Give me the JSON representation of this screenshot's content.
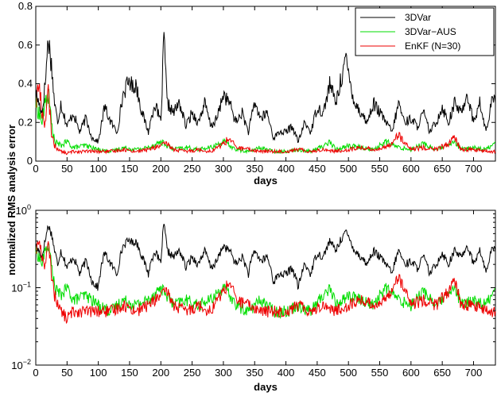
{
  "figure": {
    "ylabel": "normalized RMS analysis error"
  },
  "chart_data": [
    {
      "type": "line",
      "scale": "linear",
      "xlabel": "days",
      "ylabel": "normalized RMS analysis error",
      "xlim": [
        0,
        735
      ],
      "ylim": [
        0,
        0.8
      ],
      "xticks": [
        0,
        50,
        100,
        150,
        200,
        250,
        300,
        350,
        400,
        450,
        500,
        550,
        600,
        650,
        700
      ],
      "yticks": [
        0,
        0.2,
        0.4,
        0.6,
        0.8
      ],
      "xtick_labels": [
        "0",
        "50",
        "100",
        "150",
        "200",
        "250",
        "300",
        "350",
        "400",
        "450",
        "500",
        "550",
        "600",
        "650",
        "700"
      ],
      "ytick_labels": [
        "0",
        "0.2",
        "0.4",
        "0.6",
        "0.8"
      ],
      "legend": {
        "position": "top-right"
      },
      "series": [
        {
          "name": "3DVar",
          "color": "#000000",
          "x": [
            0,
            5,
            10,
            15,
            20,
            25,
            30,
            35,
            40,
            50,
            60,
            70,
            80,
            90,
            100,
            110,
            120,
            130,
            140,
            150,
            155,
            160,
            170,
            180,
            190,
            200,
            205,
            210,
            220,
            230,
            240,
            250,
            260,
            270,
            280,
            290,
            300,
            305,
            310,
            320,
            330,
            340,
            350,
            360,
            370,
            380,
            390,
            400,
            410,
            420,
            430,
            440,
            450,
            460,
            470,
            480,
            490,
            495,
            500,
            510,
            520,
            530,
            540,
            550,
            560,
            570,
            580,
            590,
            600,
            610,
            620,
            630,
            640,
            650,
            660,
            670,
            680,
            690,
            700,
            710,
            720,
            730,
            735
          ],
          "y": [
            0.35,
            0.3,
            0.25,
            0.4,
            0.64,
            0.5,
            0.3,
            0.2,
            0.3,
            0.18,
            0.25,
            0.15,
            0.22,
            0.12,
            0.1,
            0.28,
            0.2,
            0.15,
            0.35,
            0.42,
            0.38,
            0.4,
            0.25,
            0.15,
            0.3,
            0.2,
            0.64,
            0.3,
            0.25,
            0.3,
            0.18,
            0.25,
            0.2,
            0.3,
            0.18,
            0.22,
            0.35,
            0.32,
            0.3,
            0.2,
            0.25,
            0.15,
            0.3,
            0.22,
            0.25,
            0.12,
            0.15,
            0.15,
            0.18,
            0.1,
            0.2,
            0.15,
            0.28,
            0.25,
            0.4,
            0.3,
            0.45,
            0.53,
            0.45,
            0.3,
            0.25,
            0.2,
            0.3,
            0.25,
            0.2,
            0.15,
            0.3,
            0.2,
            0.22,
            0.18,
            0.25,
            0.15,
            0.2,
            0.28,
            0.2,
            0.3,
            0.25,
            0.35,
            0.2,
            0.3,
            0.15,
            0.32,
            0.3
          ]
        },
        {
          "name": "3DVar−AUS",
          "color": "#00dd00",
          "x": [
            0,
            5,
            10,
            15,
            20,
            25,
            30,
            40,
            50,
            60,
            80,
            100,
            120,
            140,
            160,
            180,
            200,
            210,
            220,
            240,
            260,
            280,
            300,
            310,
            320,
            340,
            360,
            380,
            400,
            420,
            440,
            460,
            470,
            480,
            500,
            520,
            540,
            560,
            580,
            600,
            620,
            640,
            660,
            670,
            680,
            700,
            720,
            735
          ],
          "y": [
            0.3,
            0.25,
            0.2,
            0.3,
            0.35,
            0.2,
            0.1,
            0.08,
            0.1,
            0.07,
            0.08,
            0.06,
            0.05,
            0.07,
            0.06,
            0.07,
            0.1,
            0.08,
            0.06,
            0.07,
            0.06,
            0.07,
            0.1,
            0.08,
            0.06,
            0.05,
            0.07,
            0.05,
            0.05,
            0.06,
            0.05,
            0.08,
            0.1,
            0.06,
            0.08,
            0.07,
            0.06,
            0.1,
            0.07,
            0.06,
            0.09,
            0.06,
            0.08,
            0.1,
            0.06,
            0.07,
            0.06,
            0.1
          ]
        },
        {
          "name": "EnKF (N=30)",
          "color": "#ee0000",
          "x": [
            0,
            5,
            10,
            15,
            20,
            25,
            30,
            40,
            50,
            60,
            80,
            100,
            120,
            140,
            160,
            180,
            200,
            210,
            220,
            240,
            260,
            280,
            300,
            310,
            320,
            340,
            360,
            380,
            400,
            420,
            440,
            460,
            480,
            500,
            520,
            540,
            560,
            570,
            580,
            590,
            600,
            620,
            640,
            660,
            670,
            680,
            700,
            720,
            735
          ],
          "y": [
            0.3,
            0.4,
            0.25,
            0.2,
            0.35,
            0.15,
            0.08,
            0.05,
            0.04,
            0.05,
            0.05,
            0.05,
            0.05,
            0.06,
            0.05,
            0.06,
            0.08,
            0.09,
            0.06,
            0.05,
            0.06,
            0.05,
            0.09,
            0.12,
            0.07,
            0.06,
            0.05,
            0.05,
            0.05,
            0.06,
            0.05,
            0.06,
            0.05,
            0.06,
            0.07,
            0.06,
            0.07,
            0.1,
            0.14,
            0.09,
            0.06,
            0.07,
            0.06,
            0.09,
            0.12,
            0.06,
            0.06,
            0.05,
            0.05
          ]
        }
      ]
    },
    {
      "type": "line",
      "scale": "log",
      "xlabel": "days",
      "ylabel": "normalized RMS analysis error",
      "xlim": [
        0,
        735
      ],
      "ylim": [
        0.01,
        1
      ],
      "xticks": [
        0,
        50,
        100,
        150,
        200,
        250,
        300,
        350,
        400,
        450,
        500,
        550,
        600,
        650,
        700
      ],
      "xtick_labels": [
        "0",
        "50",
        "100",
        "150",
        "200",
        "250",
        "300",
        "350",
        "400",
        "450",
        "500",
        "550",
        "600",
        "650",
        "700"
      ],
      "yticks": [
        0.01,
        0.1,
        1
      ],
      "ytick_labels": [
        {
          "base": "10",
          "exp": "−2"
        },
        {
          "base": "10",
          "exp": "−1"
        },
        {
          "base": "10",
          "exp": "0"
        }
      ]
    }
  ]
}
